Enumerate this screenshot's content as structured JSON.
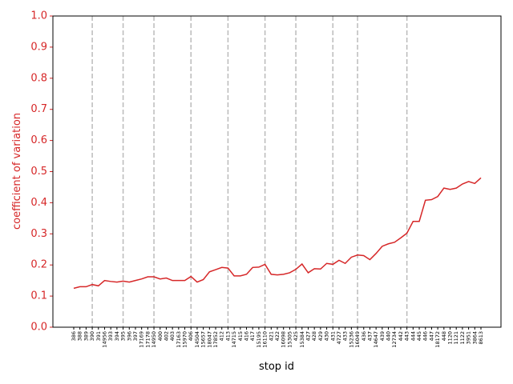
{
  "chart_data": {
    "type": "line",
    "xlabel": "stop id",
    "ylabel": "coefficient of variation",
    "categories": [
      "386",
      "388",
      "389",
      "390",
      "391",
      "14956",
      "393",
      "394",
      "395",
      "396",
      "397",
      "17169",
      "17178",
      "14950",
      "400",
      "402",
      "403",
      "17163",
      "15970",
      "406",
      "14504",
      "15657",
      "18047",
      "17852",
      "412",
      "413",
      "14715",
      "415",
      "416",
      "417",
      "15195",
      "16110",
      "421",
      "422",
      "16098",
      "15305",
      "425",
      "15384",
      "427",
      "428",
      "429",
      "430",
      "431",
      "4727",
      "433",
      "15236",
      "16049",
      "436",
      "437",
      "14647",
      "439",
      "440",
      "12734",
      "442",
      "443",
      "444",
      "445",
      "446",
      "447",
      "18172",
      "448",
      "1120",
      "1121",
      "1122",
      "3951",
      "3864",
      "8613"
    ],
    "series": [
      {
        "name": "coefficient of variation",
        "color": "#d62728",
        "values": [
          0.125,
          0.13,
          0.13,
          0.137,
          0.133,
          0.15,
          0.147,
          0.145,
          0.148,
          0.145,
          0.15,
          0.155,
          0.162,
          0.162,
          0.155,
          0.158,
          0.15,
          0.15,
          0.15,
          0.163,
          0.145,
          0.153,
          0.178,
          0.185,
          0.192,
          0.19,
          0.165,
          0.165,
          0.17,
          0.192,
          0.193,
          0.202,
          0.17,
          0.168,
          0.17,
          0.175,
          0.186,
          0.203,
          0.175,
          0.188,
          0.187,
          0.205,
          0.202,
          0.215,
          0.205,
          0.225,
          0.232,
          0.23,
          0.217,
          0.237,
          0.26,
          0.268,
          0.273,
          0.287,
          0.302,
          0.34,
          0.34,
          0.408,
          0.41,
          0.42,
          0.447,
          0.443,
          0.447,
          0.46,
          0.468,
          0.462,
          0.48
        ]
      }
    ],
    "vlines": [
      "390",
      "395",
      "14950",
      "406",
      "413",
      "16110",
      "425",
      "431",
      "16049",
      "443"
    ],
    "vline_color": "#bbbbbb",
    "ylim": [
      0,
      1
    ],
    "yticks": [
      {
        "value": 0,
        "label": "0.0"
      },
      {
        "value": 0.1,
        "label": "0.1"
      },
      {
        "value": 0.2,
        "label": "0.2"
      },
      {
        "value": 0.3,
        "label": "0.3"
      },
      {
        "value": 0.4,
        "label": "0.4"
      },
      {
        "value": 0.5,
        "label": "0.5"
      },
      {
        "value": 0.6,
        "label": "0.6"
      },
      {
        "value": 0.7,
        "label": "0.7"
      },
      {
        "value": 0.8,
        "label": "0.8"
      },
      {
        "value": 0.9,
        "label": "0.9"
      },
      {
        "value": 1,
        "label": "1.0"
      }
    ],
    "axis_color": "#d62728"
  }
}
